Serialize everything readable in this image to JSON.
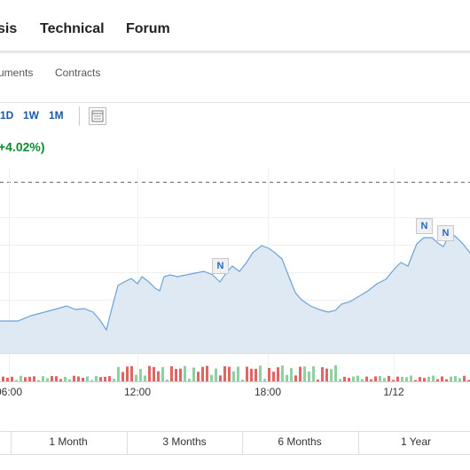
{
  "nav": {
    "tabs": [
      "sis",
      "Technical",
      "Forum"
    ]
  },
  "subnav": {
    "tabs": [
      "uments",
      "Contracts"
    ]
  },
  "toolbar": {
    "intervals": [
      "1D",
      "1W",
      "1M"
    ]
  },
  "quote": {
    "change": "+4.02%)"
  },
  "chart": {
    "x_labels": [
      "06:00",
      "12:00",
      "18:00",
      "1/12"
    ],
    "news_markers": [
      "N",
      "N",
      "N"
    ]
  },
  "range_tabs": [
    "1 Month",
    "3 Months",
    "6 Months",
    "1 Year"
  ]
}
